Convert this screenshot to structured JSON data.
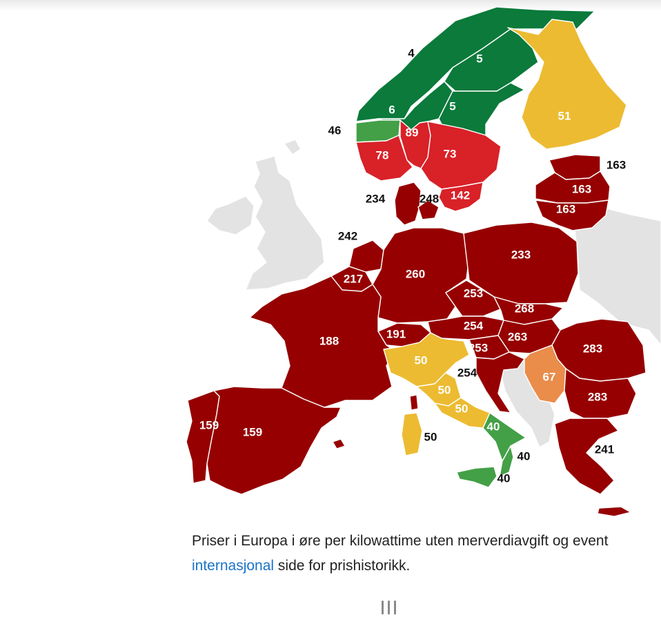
{
  "colors": {
    "green": "#0b7a3b",
    "light_green": "#43a047",
    "red": "#d92128",
    "dark_red": "#960000",
    "yellow": "#ecbb31",
    "orange": "#ea8c4a",
    "grey": "#e3e3e3",
    "caption_text": "#222222",
    "link": "#1a73c8"
  },
  "map": {
    "unit": "øre per kilowattime",
    "regions": [
      {
        "id": "NO4",
        "country": "Norge",
        "price": "4"
      },
      {
        "id": "SE1",
        "country": "Sverige",
        "price": "5"
      },
      {
        "id": "NO3",
        "country": "Norge",
        "price": "6"
      },
      {
        "id": "SE2",
        "country": "Sverige",
        "price": "5"
      },
      {
        "id": "FI",
        "country": "Finland",
        "price": "51"
      },
      {
        "id": "NO5",
        "country": "Norge",
        "price": "46"
      },
      {
        "id": "NO1",
        "country": "Norge",
        "price": "89"
      },
      {
        "id": "NO2",
        "country": "Norge",
        "price": "78"
      },
      {
        "id": "SE3",
        "country": "Sverige",
        "price": "73"
      },
      {
        "id": "SE4",
        "country": "Sverige",
        "price": "142"
      },
      {
        "id": "EE",
        "country": "Estland",
        "price": "163"
      },
      {
        "id": "LV",
        "country": "Latvia",
        "price": "163"
      },
      {
        "id": "LT",
        "country": "Litauen",
        "price": "163"
      },
      {
        "id": "DK1",
        "country": "Danmark",
        "price": "234"
      },
      {
        "id": "DK2",
        "country": "Danmark",
        "price": "248"
      },
      {
        "id": "NL",
        "country": "Nederland",
        "price": "242"
      },
      {
        "id": "BE",
        "country": "Belgia",
        "price": "217"
      },
      {
        "id": "DE",
        "country": "Tyskland",
        "price": "260"
      },
      {
        "id": "PL",
        "country": "Polen",
        "price": "233"
      },
      {
        "id": "CZ",
        "country": "Tsjekkia",
        "price": "253"
      },
      {
        "id": "SK",
        "country": "Slovakia",
        "price": "268"
      },
      {
        "id": "AT",
        "country": "Østerrike",
        "price": "254"
      },
      {
        "id": "HU",
        "country": "Ungarn",
        "price": "263"
      },
      {
        "id": "SI",
        "country": "Slovenia",
        "price": "253"
      },
      {
        "id": "HR",
        "country": "Kroatia",
        "price": "254"
      },
      {
        "id": "CH",
        "country": "Sveits",
        "price": "191"
      },
      {
        "id": "FR",
        "country": "Frankrike",
        "price": "188"
      },
      {
        "id": "RO",
        "country": "Romania",
        "price": "283"
      },
      {
        "id": "RS",
        "country": "Serbia",
        "price": "67"
      },
      {
        "id": "BG",
        "country": "Bulgaria",
        "price": "283"
      },
      {
        "id": "GR",
        "country": "Hellas",
        "price": "241"
      },
      {
        "id": "IT-N",
        "country": "Italia",
        "price": "50"
      },
      {
        "id": "IT-CN",
        "country": "Italia",
        "price": "50"
      },
      {
        "id": "IT-CS",
        "country": "Italia",
        "price": "50"
      },
      {
        "id": "IT-SARD",
        "country": "Italia",
        "price": "50"
      },
      {
        "id": "IT-S",
        "country": "Italia",
        "price": "40"
      },
      {
        "id": "IT-CAL",
        "country": "Italia",
        "price": "40"
      },
      {
        "id": "IT-SIC",
        "country": "Italia",
        "price": "40"
      },
      {
        "id": "PT",
        "country": "Portugal",
        "price": "159"
      },
      {
        "id": "ES",
        "country": "Spania",
        "price": "159"
      }
    ]
  },
  "caption": {
    "text": "Priser i Europa i øre per kilowattime uten merverdiavgift og event",
    "link_text": "internasjonal",
    "suffix": " side for prishistorikk."
  },
  "pager": {
    "icon": "pager-lines-icon"
  }
}
